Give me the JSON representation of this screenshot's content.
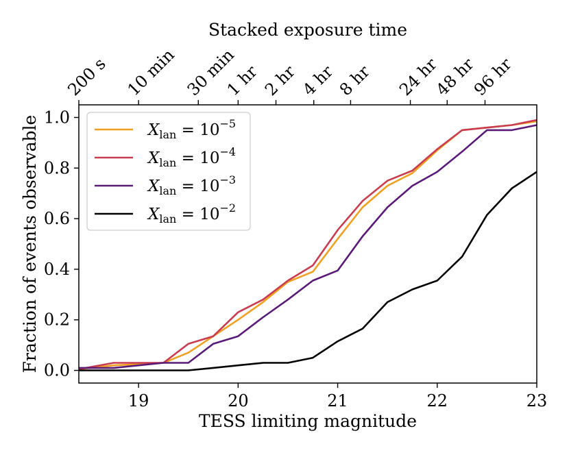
{
  "chart_data": {
    "type": "line",
    "xlabel": "TESS limiting magnitude",
    "ylabel": "Fraction of events observable",
    "top_xlabel": "Stacked exposure time",
    "xlim": [
      18.4,
      23
    ],
    "ylim": [
      -0.05,
      1.05
    ],
    "xticks": [
      19,
      20,
      21,
      22,
      23
    ],
    "yticks": [
      0.0,
      0.2,
      0.4,
      0.6,
      0.8,
      1.0
    ],
    "ytick_labels": [
      "0.0",
      "0.2",
      "0.4",
      "0.6",
      "0.8",
      "1.0"
    ],
    "top_ticks": [
      {
        "label": "200 s",
        "mag": 18.4
      },
      {
        "label": "10 min",
        "mag": 19.0
      },
      {
        "label": "30 min",
        "mag": 19.6
      },
      {
        "label": "1 hr",
        "mag": 20.0
      },
      {
        "label": "2 hr",
        "mag": 20.38
      },
      {
        "label": "4 hr",
        "mag": 20.76
      },
      {
        "label": "8 hr",
        "mag": 21.13
      },
      {
        "label": "24 hr",
        "mag": 21.73
      },
      {
        "label": "48 hr",
        "mag": 22.1
      },
      {
        "label": "96 hr",
        "mag": 22.48
      }
    ],
    "legend_position": "upper-left",
    "grid": false,
    "x": [
      18.4,
      18.75,
      19.0,
      19.25,
      19.5,
      19.75,
      20.0,
      20.25,
      20.5,
      20.75,
      21.0,
      21.25,
      21.5,
      21.75,
      22.0,
      22.25,
      22.5,
      22.75,
      23.0
    ],
    "series": [
      {
        "name": "X_lan = 10^-5",
        "base": "X",
        "sub": "lan",
        "exp": "−5",
        "color": "#f0a020",
        "values": [
          0.005,
          0.02,
          0.025,
          0.03,
          0.07,
          0.135,
          0.2,
          0.27,
          0.35,
          0.39,
          0.52,
          0.645,
          0.73,
          0.78,
          0.87,
          0.95,
          0.96,
          0.97,
          0.985
        ]
      },
      {
        "name": "X_lan = 10^-4",
        "base": "X",
        "sub": "lan",
        "exp": "−4",
        "color": "#c83c50",
        "values": [
          0.005,
          0.03,
          0.03,
          0.03,
          0.105,
          0.135,
          0.23,
          0.28,
          0.355,
          0.415,
          0.555,
          0.67,
          0.75,
          0.79,
          0.875,
          0.95,
          0.96,
          0.97,
          0.99
        ]
      },
      {
        "name": "X_lan = 10^-3",
        "base": "X",
        "sub": "lan",
        "exp": "−3",
        "color": "#5a1a78",
        "values": [
          0.01,
          0.01,
          0.02,
          0.03,
          0.03,
          0.105,
          0.135,
          0.21,
          0.28,
          0.355,
          0.395,
          0.53,
          0.645,
          0.73,
          0.785,
          0.865,
          0.95,
          0.95,
          0.97
        ]
      },
      {
        "name": "X_lan = 10^-2",
        "base": "X",
        "sub": "lan",
        "exp": "−2",
        "color": "#000000",
        "values": [
          0.0,
          0.0,
          0.0,
          0.0,
          0.0,
          0.01,
          0.02,
          0.03,
          0.03,
          0.05,
          0.115,
          0.165,
          0.27,
          0.32,
          0.355,
          0.45,
          0.615,
          0.72,
          0.785
        ]
      }
    ]
  }
}
